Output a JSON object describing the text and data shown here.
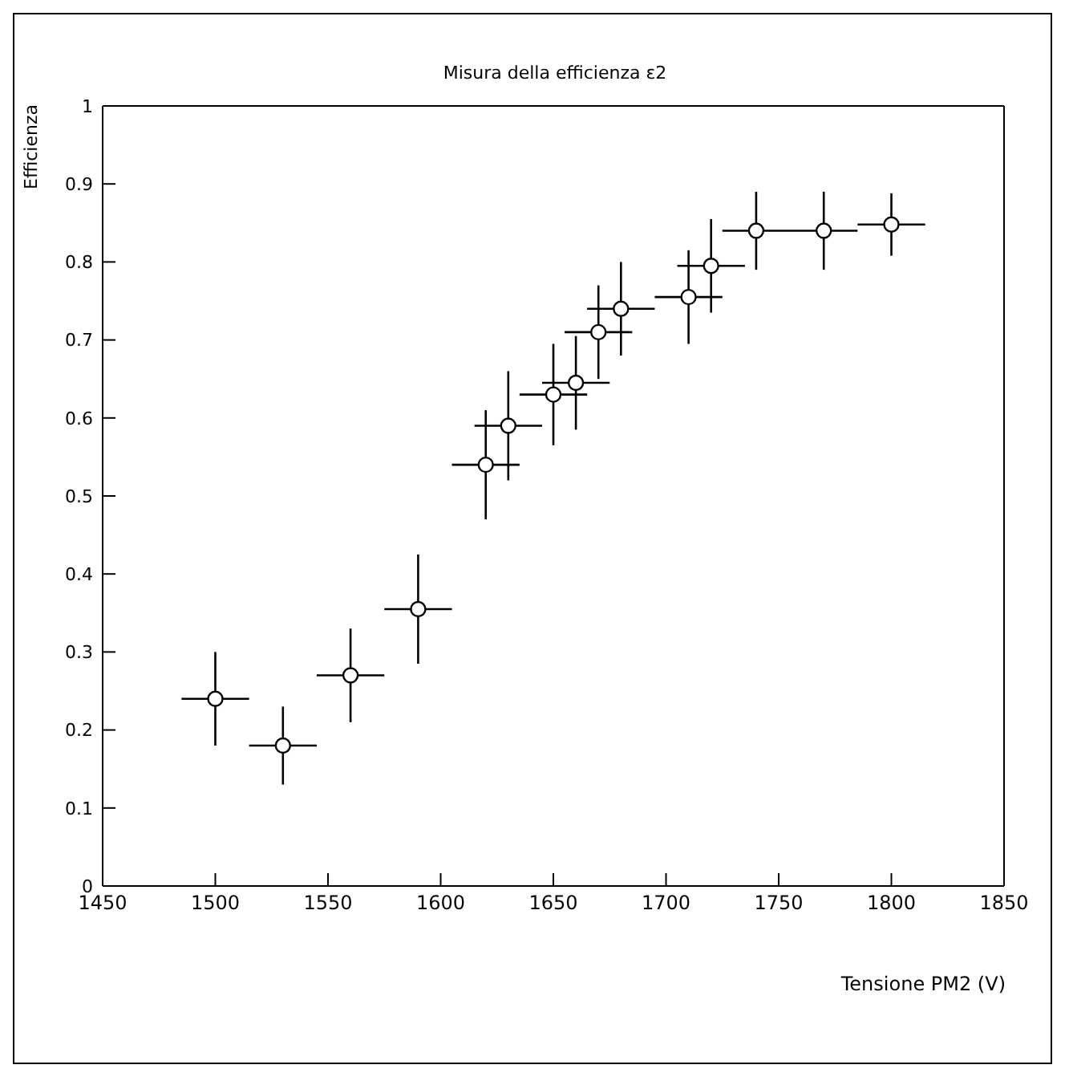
{
  "chart_data": {
    "type": "scatter",
    "title": "Misura della efficienza ε2",
    "xlabel": "Tensione PM2 (V)",
    "ylabel": "Efficienza",
    "x": [
      1500,
      1530,
      1560,
      1590,
      1620,
      1630,
      1650,
      1660,
      1670,
      1680,
      1710,
      1720,
      1740,
      1770,
      1800
    ],
    "series": [
      {
        "color": "#000000",
        "values": [
          0.24,
          0.18,
          0.27,
          0.355,
          0.54,
          0.59,
          0.63,
          0.645,
          0.71,
          0.74,
          0.755,
          0.795,
          0.84,
          0.84,
          0.848
        ],
        "errors": [
          0.06,
          0.05,
          0.06,
          0.07,
          0.07,
          0.07,
          0.065,
          0.06,
          0.06,
          0.06,
          0.06,
          0.06,
          0.05,
          0.05,
          0.04
        ],
        "xerrors": [
          15,
          15,
          15,
          15,
          15,
          15,
          15,
          15,
          15,
          15,
          15,
          15,
          15,
          15,
          15
        ]
      }
    ],
    "xlim": [
      1450,
      1850
    ],
    "xticks": [
      1450,
      1500,
      1550,
      1600,
      1650,
      1700,
      1750,
      1800,
      1850
    ],
    "ylim": [
      0,
      1
    ],
    "yticks": [
      0,
      0.1,
      0.2,
      0.3,
      0.4,
      0.5,
      0.6,
      0.7,
      0.8,
      0.9,
      1
    ],
    "grid": false,
    "legend": false,
    "marker": "circle"
  }
}
